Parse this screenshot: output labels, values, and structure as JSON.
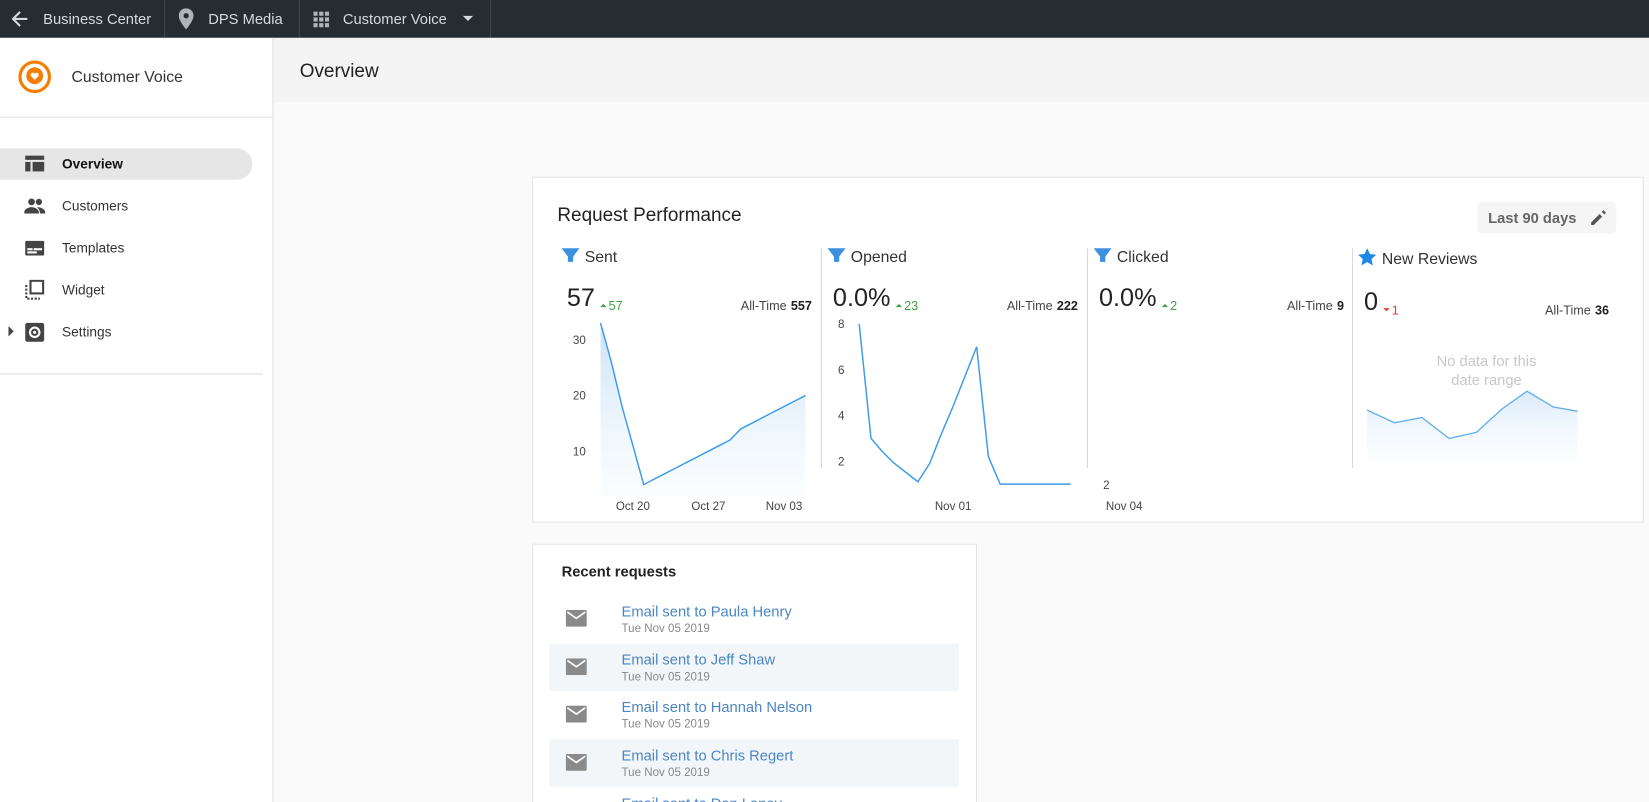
{
  "topbar": {
    "back": "Business Center",
    "location": "DPS Media",
    "app": "Customer Voice"
  },
  "sidebar": {
    "brand": "Customer Voice",
    "nav": [
      "Overview",
      "Customers",
      "Templates",
      "Widget",
      "Settings"
    ]
  },
  "header": {
    "title": "Overview"
  },
  "performance": {
    "title": "Request Performance",
    "range": "Last 90 days",
    "metrics": [
      {
        "name": "Sent",
        "value": 57,
        "change": 57,
        "all_time_label": "All-Time",
        "all_time": 557,
        "chart": {
          "ylim": [
            0,
            34
          ],
          "yticks": [
            10,
            20,
            30
          ],
          "area": true,
          "categories": [
            null,
            null,
            null,
            "Oct 20",
            null,
            null,
            null,
            null,
            null,
            null,
            "Oct 27",
            null,
            null,
            null,
            null,
            null,
            null,
            "Nov 03",
            null,
            null
          ],
          "values": [
            33,
            26,
            18,
            11,
            4,
            5,
            6,
            7,
            8,
            9,
            10,
            11,
            12,
            14,
            15,
            16,
            17,
            18,
            19,
            20
          ]
        }
      },
      {
        "name": "Opened",
        "value": "0.0%",
        "change": 23,
        "all_time_label": "All-Time",
        "all_time": 222,
        "chart": {
          "ylim": [
            0,
            8
          ],
          "yticks": [
            2,
            4,
            6,
            8
          ],
          "area": false,
          "categories": [
            null,
            null,
            null,
            null,
            null,
            null,
            null,
            null,
            "Nov 01",
            null,
            null,
            null,
            null,
            null,
            null,
            null,
            null,
            null,
            null
          ],
          "values": [
            8,
            3,
            2.4,
            1.9,
            1.5,
            1.1,
            1.9,
            3.2,
            4.4,
            5.7,
            7,
            2.2,
            1,
            1,
            1,
            1,
            1,
            1,
            1
          ]
        }
      },
      {
        "name": "Clicked",
        "value": "0.0%",
        "change": 2,
        "all_time_label": "All-Time",
        "all_time": 9,
        "chart": {
          "ylim": [
            0,
            2
          ],
          "yticks": [
            2
          ],
          "area": false,
          "categories": [
            "Nov 04"
          ],
          "values": []
        }
      },
      {
        "name": "New Reviews",
        "value": 0,
        "change": 1,
        "all_time_label": "All-Time",
        "all_time": 36,
        "empty_message": "No data for this date range"
      }
    ]
  },
  "recent": {
    "title": "Recent requests",
    "items": [
      {
        "text": "Email sent to Paula Henry",
        "date": "Tue Nov 05 2019"
      },
      {
        "text": "Email sent to Jeff Shaw",
        "date": "Tue Nov 05 2019"
      },
      {
        "text": "Email sent to Hannah Nelson",
        "date": "Tue Nov 05 2019"
      },
      {
        "text": "Email sent to Chris Regert",
        "date": "Tue Nov 05 2019"
      },
      {
        "text": "Email sent to Dan Laney"
      }
    ]
  }
}
